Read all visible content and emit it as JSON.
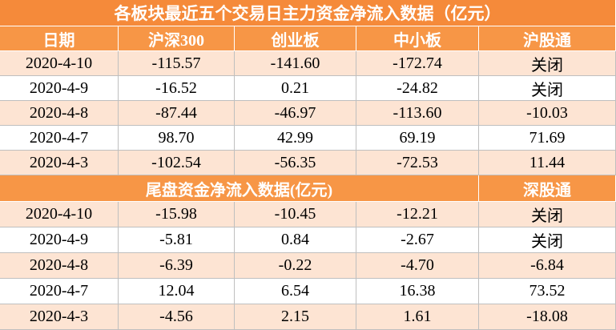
{
  "title": "各板块最近五个交易日主力资金净流入数据（亿元）",
  "table": {
    "header": [
      "日期",
      "沪深300",
      "创业板",
      "中小板",
      "沪股通"
    ],
    "rows": [
      [
        "2020-4-10",
        "-115.57",
        "-141.60",
        "-172.74",
        "关闭"
      ],
      [
        "2020-4-9",
        "-16.52",
        "0.21",
        "-24.82",
        "关闭"
      ],
      [
        "2020-4-8",
        "-87.44",
        "-46.97",
        "-113.60",
        "-10.03"
      ],
      [
        "2020-4-7",
        "98.70",
        "42.99",
        "69.19",
        "71.69"
      ],
      [
        "2020-4-3",
        "-102.54",
        "-56.35",
        "-72.53",
        "11.44"
      ]
    ]
  },
  "table2": {
    "header": [
      "尾盘资金净流入数据(亿元)",
      "深股通"
    ],
    "rows": [
      [
        "2020-4-10",
        "-15.98",
        "-10.45",
        "-12.21",
        "关闭"
      ],
      [
        "2020-4-9",
        "-5.81",
        "0.84",
        "-2.67",
        "关闭"
      ],
      [
        "2020-4-8",
        "-6.39",
        "-0.22",
        "-4.70",
        "-6.84"
      ],
      [
        "2020-4-7",
        "12.04",
        "6.54",
        "16.38",
        "73.52"
      ],
      [
        "2020-4-3",
        "-4.56",
        "2.15",
        "1.61",
        "-18.08"
      ]
    ]
  }
}
